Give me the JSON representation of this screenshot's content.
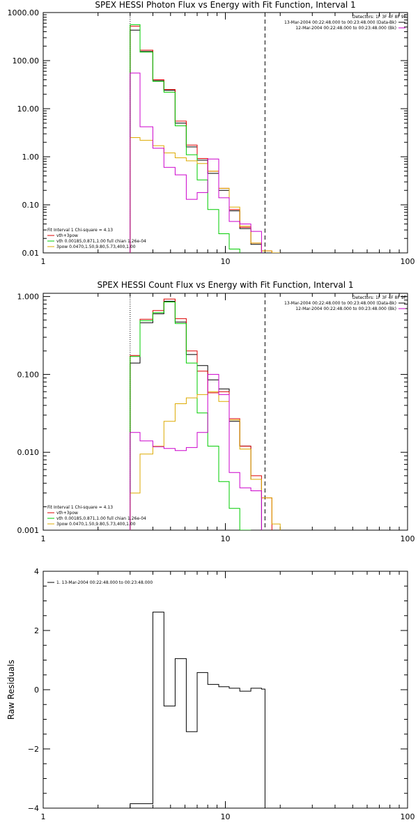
{
  "chart_data": [
    {
      "type": "line",
      "title": "SPEX HESSI Photon Flux vs Energy with Fit Function, Interval 1",
      "xlabel": "",
      "ylabel": "",
      "x_scale": "log",
      "y_scale": "log",
      "xlim": [
        1,
        100
      ],
      "ylim": [
        0.01,
        1000
      ],
      "x_ticks": [
        {
          "value": 1,
          "label": "1"
        },
        {
          "value": 10,
          "label": "10"
        },
        {
          "value": 100,
          "label": "100"
        }
      ],
      "y_ticks": [
        {
          "value": 0.01,
          "label": "0.01"
        },
        {
          "value": 0.1,
          "label": "0.10"
        },
        {
          "value": 1,
          "label": "1.00"
        },
        {
          "value": 10,
          "label": "10.00"
        },
        {
          "value": 100,
          "label": "100.00"
        },
        {
          "value": 1000,
          "label": "1000.00"
        }
      ],
      "vlines": [
        {
          "x": 3.0,
          "style": "dotted",
          "color": "#000000"
        },
        {
          "x": 16.5,
          "style": "dashed",
          "color": "#000000"
        }
      ],
      "legend_top": {
        "header": "Detectors: 1F 3F 4F 8F 9F",
        "entries": [
          {
            "text": "13-Mar-2004 00:22:48.000 to 00:23:48.000 (Data-Bk)",
            "color": "#000000"
          },
          {
            "text": "12-Mar-2004 00:22:48.000 to 00:23:48.000 (Bk)",
            "color": "#cc00cc"
          }
        ]
      },
      "legend_bottom": {
        "header": "Fit Interval 1   Chi-square = 4.13",
        "entries": [
          {
            "text": "vth+3pow",
            "color": "#dd0000"
          },
          {
            "text": "vth 0.00185,0.871,1.00  full chian 1.26e-04",
            "color": "#00cc00"
          },
          {
            "text": "3pow 0.0470,1.50,9.80,5.73,400,1.00",
            "color": "#ddaa00"
          }
        ]
      },
      "series": [
        {
          "color": "#000000",
          "edges": [
            3.0,
            3.4,
            4.0,
            4.6,
            5.3,
            6.1,
            7.0,
            8.0,
            9.2,
            10.5,
            12.0,
            13.8,
            15.8
          ],
          "values": [
            430,
            155,
            38,
            24,
            5.0,
            1.6,
            0.85,
            0.45,
            0.2,
            0.075,
            0.032,
            0.015
          ]
        },
        {
          "color": "#dd0000",
          "edges": [
            3.0,
            3.4,
            4.0,
            4.6,
            5.3,
            6.1,
            7.0,
            8.0,
            9.2,
            10.5,
            12.0,
            13.8,
            15.8,
            18.0
          ],
          "values": [
            520,
            165,
            40,
            25,
            5.5,
            1.75,
            0.92,
            0.5,
            0.22,
            0.08,
            0.034,
            0.016,
            0.011
          ]
        },
        {
          "color": "#00cc00",
          "edges": [
            3.0,
            3.4,
            4.0,
            4.6,
            5.3,
            6.1,
            7.0,
            8.0,
            9.2,
            10.5,
            12.0
          ],
          "values": [
            560,
            150,
            37,
            22,
            4.4,
            1.1,
            0.33,
            0.08,
            0.025,
            0.012
          ]
        },
        {
          "color": "#ddaa00",
          "edges": [
            3.0,
            3.4,
            4.0,
            4.6,
            5.3,
            6.1,
            7.0,
            8.0,
            9.2,
            10.5,
            12.0,
            13.8,
            15.8,
            18.0,
            20.0
          ],
          "values": [
            2.5,
            2.2,
            1.7,
            1.2,
            0.95,
            0.82,
            0.72,
            0.5,
            0.22,
            0.09,
            0.036,
            0.016,
            0.011,
            0.009
          ]
        },
        {
          "color": "#cc00cc",
          "edges": [
            3.0,
            3.4,
            4.0,
            4.6,
            5.3,
            6.1,
            7.0,
            8.0,
            9.2,
            10.5,
            12.0,
            13.8,
            15.8
          ],
          "values": [
            55,
            4.2,
            1.5,
            0.6,
            0.42,
            0.13,
            0.18,
            0.9,
            0.14,
            0.045,
            0.04,
            0.028
          ]
        }
      ]
    },
    {
      "type": "line",
      "title": "SPEX HESSI Count Flux vs Energy with Fit Function, Interval 1",
      "xlabel": "",
      "ylabel": "",
      "x_scale": "log",
      "y_scale": "log",
      "xlim": [
        1,
        100
      ],
      "ylim": [
        0.001,
        1.1
      ],
      "x_ticks": [
        {
          "value": 1,
          "label": "1"
        },
        {
          "value": 10,
          "label": "10"
        },
        {
          "value": 100,
          "label": "100"
        }
      ],
      "y_ticks": [
        {
          "value": 0.001,
          "label": "0.001"
        },
        {
          "value": 0.01,
          "label": "0.010"
        },
        {
          "value": 0.1,
          "label": "0.100"
        },
        {
          "value": 1,
          "label": "1.000"
        }
      ],
      "vlines": [
        {
          "x": 3.0,
          "style": "dotted",
          "color": "#000000"
        },
        {
          "x": 16.5,
          "style": "dashed",
          "color": "#000000"
        }
      ],
      "legend_top": {
        "header": "Detectors: 1F 3F 4F 8F 9F",
        "entries": [
          {
            "text": "13-Mar-2004 00:22:48.000 to 00:23:48.000 (Data-Bk)",
            "color": "#000000"
          },
          {
            "text": "12-Mar-2004 00:22:48.000 to 00:23:48.000 (Bk)",
            "color": "#cc00cc"
          }
        ]
      },
      "legend_bottom": {
        "header": "Fit Interval 1   Chi-square = 4.13",
        "entries": [
          {
            "text": "vth+3pow",
            "color": "#dd0000"
          },
          {
            "text": "vth 0.00185,0.871,1.00  full chian 1.26e-04",
            "color": "#00cc00"
          },
          {
            "text": "3pow 0.0470,1.50,9.80,5.73,400,1.00",
            "color": "#ddaa00"
          }
        ]
      },
      "series": [
        {
          "color": "#000000",
          "edges": [
            3.0,
            3.4,
            4.0,
            4.6,
            5.3,
            6.1,
            7.0,
            8.0,
            9.2,
            10.5,
            12.0,
            13.8,
            15.8
          ],
          "values": [
            0.14,
            0.46,
            0.6,
            0.87,
            0.47,
            0.18,
            0.13,
            0.085,
            0.065,
            0.025,
            0.012,
            0.0045
          ]
        },
        {
          "color": "#dd0000",
          "edges": [
            3.0,
            3.4,
            4.0,
            4.6,
            5.3,
            6.1,
            7.0,
            8.0,
            9.2,
            10.5,
            12.0,
            13.8,
            15.8,
            18.0
          ],
          "values": [
            0.175,
            0.51,
            0.66,
            0.93,
            0.52,
            0.2,
            0.11,
            0.058,
            0.06,
            0.027,
            0.012,
            0.005,
            0.0026
          ]
        },
        {
          "color": "#00cc00",
          "edges": [
            3.0,
            3.4,
            4.0,
            4.6,
            5.3,
            6.1,
            7.0,
            8.0,
            9.2,
            10.5,
            12.0,
            13.8
          ],
          "values": [
            0.17,
            0.49,
            0.62,
            0.85,
            0.45,
            0.14,
            0.032,
            0.012,
            0.0042,
            0.0019,
            0.001
          ]
        },
        {
          "color": "#ddaa00",
          "edges": [
            3.0,
            3.4,
            4.0,
            4.6,
            5.3,
            6.1,
            7.0,
            8.0,
            9.2,
            10.5,
            12.0,
            13.8,
            15.8,
            18.0,
            20.0
          ],
          "values": [
            0.003,
            0.0095,
            0.012,
            0.025,
            0.042,
            0.05,
            0.055,
            0.06,
            0.045,
            0.026,
            0.011,
            0.0045,
            0.0026,
            0.0012
          ]
        },
        {
          "color": "#cc00cc",
          "edges": [
            3.0,
            3.4,
            4.0,
            4.6,
            5.3,
            6.1,
            7.0,
            8.0,
            9.2,
            10.5,
            12.0,
            13.8,
            15.8
          ],
          "values": [
            0.018,
            0.014,
            0.0118,
            0.0112,
            0.0105,
            0.0115,
            0.018,
            0.1,
            0.055,
            0.0055,
            0.0035,
            0.0032
          ]
        }
      ]
    },
    {
      "type": "line",
      "title": "",
      "xlabel": "",
      "ylabel": "Raw Residuals",
      "x_scale": "log",
      "y_scale": "linear",
      "xlim": [
        1,
        100
      ],
      "ylim": [
        -4,
        4
      ],
      "x_ticks": [
        {
          "value": 1,
          "label": "1"
        },
        {
          "value": 10,
          "label": "10"
        },
        {
          "value": 100,
          "label": "100"
        }
      ],
      "y_ticks": [
        {
          "value": -4,
          "label": "−4"
        },
        {
          "value": -2,
          "label": "−2"
        },
        {
          "value": 0,
          "label": "0"
        },
        {
          "value": 2,
          "label": "2"
        },
        {
          "value": 4,
          "label": "4"
        }
      ],
      "legend_top_left": {
        "entries": [
          {
            "text": "1. 13-Mar-2004 00:22:48.000 to 00:23:48.000",
            "color": "#000000"
          }
        ]
      },
      "series": [
        {
          "color": "#000000",
          "edges": [
            3.0,
            3.4,
            4.0,
            4.6,
            5.3,
            6.1,
            7.0,
            8.0,
            9.2,
            10.5,
            12.0,
            13.8,
            15.8,
            16.5
          ],
          "values": [
            -3.85,
            -3.85,
            2.62,
            -0.55,
            1.05,
            -1.42,
            0.58,
            0.18,
            0.1,
            0.05,
            -0.05,
            0.05,
            0.02
          ],
          "drop_to_bottom": true
        }
      ]
    }
  ]
}
